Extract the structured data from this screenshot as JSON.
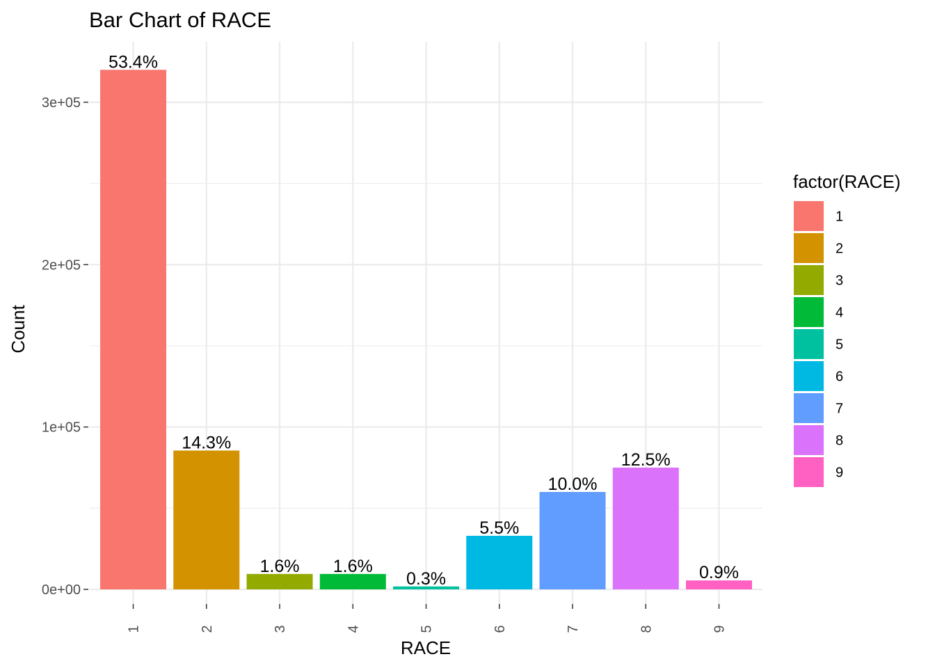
{
  "chart_data": {
    "type": "bar",
    "title": "Bar Chart of RACE",
    "xlabel": "RACE",
    "ylabel": "Count",
    "categories": [
      "1",
      "2",
      "3",
      "4",
      "5",
      "6",
      "7",
      "8",
      "9"
    ],
    "values": [
      320000,
      85500,
      9500,
      9500,
      1800,
      33000,
      60000,
      75000,
      5500
    ],
    "data_labels": [
      "53.4%",
      "14.3%",
      "1.6%",
      "1.6%",
      "0.3%",
      "5.5%",
      "10.0%",
      "12.5%",
      "0.9%"
    ],
    "colors": [
      "#F8766D",
      "#D39200",
      "#93AA00",
      "#00BA38",
      "#00C19F",
      "#00B9E3",
      "#619CFF",
      "#DB72FB",
      "#FF61C3"
    ],
    "ylim": [
      0,
      320000
    ],
    "y_ticks": [
      0,
      100000,
      200000,
      300000
    ],
    "y_tick_labels": [
      "0e+00",
      "1e+05",
      "2e+05",
      "3e+05"
    ],
    "grid": true,
    "x_tick_rotation": "vertical",
    "legend": {
      "title": "factor(RACE)",
      "placement": "right",
      "items": [
        "1",
        "2",
        "3",
        "4",
        "5",
        "6",
        "7",
        "8",
        "9"
      ]
    }
  }
}
